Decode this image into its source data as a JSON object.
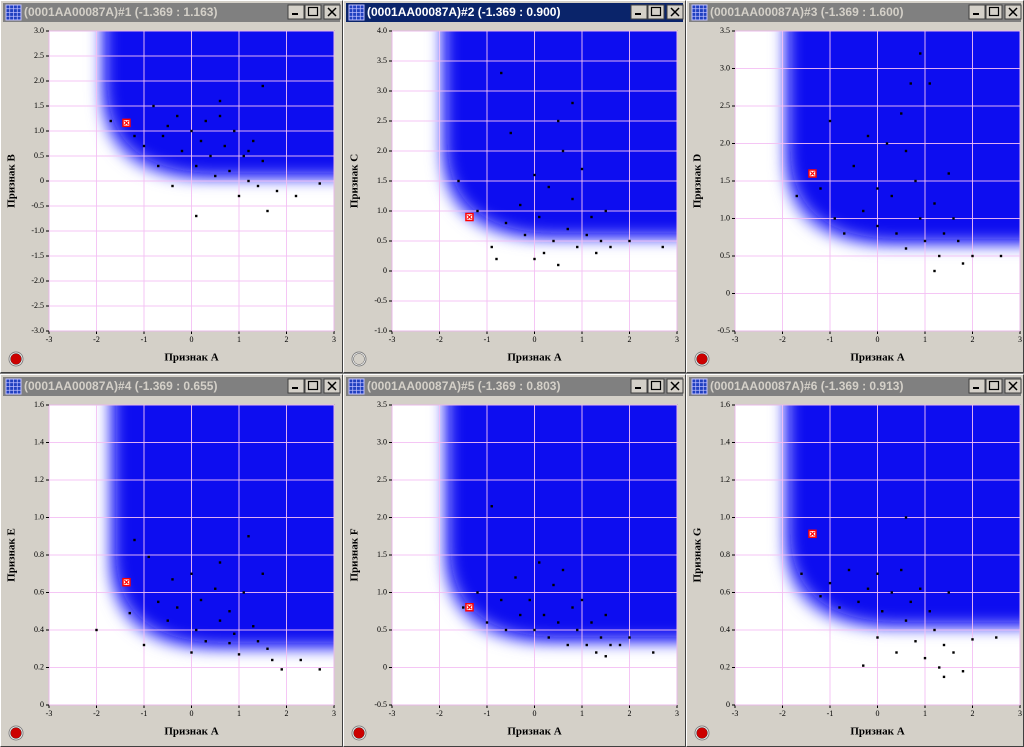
{
  "chart_data": [
    {
      "type": "scatter",
      "title": "(0001AA00087A)#1 (-1.369 : 1.163)",
      "active": false,
      "button_color": "#cc0000",
      "x_label": "Признак A",
      "y_label": "Признак B",
      "color": "#000000",
      "highlight_color": "#ff0000",
      "xlim": [
        -3,
        3
      ],
      "ylim": [
        -3,
        3
      ],
      "xticks": [
        -3,
        -2,
        -1,
        0,
        1,
        2,
        3
      ],
      "yticks": [
        {
          "value": -3,
          "label": "-3.0"
        },
        {
          "value": -2.5,
          "label": "-2.5"
        },
        {
          "value": -2,
          "label": "-2.0"
        },
        {
          "value": -1.5,
          "label": "-1.5"
        },
        {
          "value": -1,
          "label": "-1.0"
        },
        {
          "value": -0.5,
          "label": "-0.5"
        },
        0,
        {
          "value": 0.5,
          "label": "0.5"
        },
        {
          "value": 1,
          "label": "1.0"
        },
        {
          "value": 1.5,
          "label": "1.5"
        },
        {
          "value": 2,
          "label": "2.0"
        },
        {
          "value": 2.5,
          "label": "2.5"
        },
        {
          "value": 3,
          "label": "3.0"
        }
      ],
      "x": [
        -1.7,
        -1.2,
        -1,
        -0.8,
        -0.7,
        -0.5,
        -0.4,
        -0.3,
        -0.2,
        0,
        0.1,
        0.1,
        0.2,
        0.3,
        0.4,
        0.5,
        0.6,
        0.7,
        0.8,
        0.9,
        1.0,
        1.1,
        1.2,
        1.3,
        1.4,
        1.5,
        1.5,
        1.6,
        1.8,
        2.2,
        2.7,
        0.6,
        -0.6,
        1.2
      ],
      "y": [
        1.2,
        0.9,
        0.7,
        1.5,
        0.3,
        1.1,
        -0.1,
        1.3,
        0.6,
        1.0,
        -0.7,
        0.3,
        0.8,
        1.2,
        0.5,
        0.1,
        1.6,
        0.7,
        0.2,
        1.0,
        -0.3,
        0.5,
        0.0,
        0.8,
        -0.1,
        0.4,
        1.9,
        -0.6,
        -0.2,
        -0.3,
        -0.05,
        1.3,
        0.9,
        0.6
      ],
      "highlight": {
        "x": -1.369,
        "y": 1.163
      }
    },
    {
      "type": "scatter",
      "title": "(0001AA00087A)#2 (-1.369 : 0.900)",
      "active": true,
      "button_color": "#d4d0c8",
      "x_label": "Признак A",
      "y_label": "Признак C",
      "color": "#000000",
      "highlight_color": "#ff0000",
      "xlim": [
        -3,
        3
      ],
      "ylim": [
        -1,
        4
      ],
      "xticks": [
        -3,
        -2,
        -1,
        0,
        1,
        2,
        3
      ],
      "yticks": [
        {
          "value": -1,
          "label": "-1.0"
        },
        {
          "value": -0.5,
          "label": "-0.5"
        },
        0,
        {
          "value": 0.5,
          "label": "0.5"
        },
        {
          "value": 1,
          "label": "1.0"
        },
        {
          "value": 1.5,
          "label": "1.5"
        },
        {
          "value": 2,
          "label": "2.0"
        },
        {
          "value": 2.5,
          "label": "2.5"
        },
        {
          "value": 3,
          "label": "3.0"
        },
        {
          "value": 3.5,
          "label": "3.5"
        },
        {
          "value": 4,
          "label": "4.0"
        }
      ],
      "x": [
        -1.6,
        -1.2,
        -0.9,
        -0.8,
        -0.7,
        -0.6,
        -0.5,
        -0.3,
        -0.2,
        0,
        0,
        0.1,
        0.2,
        0.3,
        0.4,
        0.5,
        0.5,
        0.6,
        0.7,
        0.8,
        0.8,
        0.9,
        1.0,
        1.1,
        1.2,
        1.3,
        1.4,
        1.5,
        1.6,
        2.0,
        2.7
      ],
      "y": [
        1.5,
        1.0,
        0.4,
        0.2,
        3.3,
        0.8,
        2.3,
        1.1,
        0.6,
        0.2,
        1.6,
        0.9,
        0.3,
        1.4,
        0.5,
        2.5,
        0.1,
        2.0,
        0.7,
        1.2,
        2.8,
        0.4,
        1.7,
        0.6,
        0.9,
        0.3,
        0.5,
        1.0,
        0.4,
        0.5,
        0.4
      ],
      "highlight": {
        "x": -1.369,
        "y": 0.9
      }
    },
    {
      "type": "scatter",
      "title": "(0001AA00087A)#3 (-1.369 : 1.600)",
      "active": false,
      "button_color": "#cc0000",
      "x_label": "Признак A",
      "y_label": "Признак D",
      "color": "#000000",
      "highlight_color": "#ff0000",
      "xlim": [
        -3,
        3
      ],
      "ylim": [
        -0.5,
        3.5
      ],
      "xticks": [
        -3,
        -2,
        -1,
        0,
        1,
        2,
        3
      ],
      "yticks": [
        {
          "value": -0.5,
          "label": "-0.5"
        },
        0,
        {
          "value": 0.5,
          "label": "0.5"
        },
        {
          "value": 1,
          "label": "1.0"
        },
        {
          "value": 1.5,
          "label": "1.5"
        },
        {
          "value": 2,
          "label": "2.0"
        },
        {
          "value": 2.5,
          "label": "2.5"
        },
        {
          "value": 3,
          "label": "3.0"
        },
        {
          "value": 3.5,
          "label": "3.5"
        }
      ],
      "x": [
        -1.7,
        -1.2,
        -1.0,
        -0.9,
        -0.7,
        -0.5,
        -0.3,
        -0.2,
        0,
        0,
        0.2,
        0.3,
        0.4,
        0.5,
        0.6,
        0.6,
        0.7,
        0.8,
        0.9,
        1.0,
        1.1,
        1.2,
        1.3,
        1.4,
        1.5,
        1.6,
        1.7,
        1.8,
        2.0,
        2.6,
        1.2,
        0.9
      ],
      "y": [
        1.3,
        1.4,
        2.3,
        1.0,
        0.8,
        1.7,
        1.1,
        2.1,
        1.4,
        0.9,
        2.0,
        1.3,
        0.8,
        2.4,
        1.9,
        0.6,
        2.8,
        1.5,
        1.0,
        0.7,
        2.8,
        1.2,
        0.5,
        0.8,
        1.6,
        1.0,
        0.7,
        0.4,
        0.5,
        0.5,
        0.3,
        3.2
      ],
      "highlight": {
        "x": -1.369,
        "y": 1.6
      }
    },
    {
      "type": "scatter",
      "title": "(0001AA00087A)#4 (-1.369 : 0.655)",
      "active": false,
      "button_color": "#cc0000",
      "x_label": "Признак A",
      "y_label": "Признак E",
      "color": "#000000",
      "highlight_color": "#ff0000",
      "xlim": [
        -3,
        3
      ],
      "ylim": [
        0,
        1.6
      ],
      "xticks": [
        -3,
        -2,
        -1,
        0,
        1,
        2,
        3
      ],
      "yticks": [
        0,
        {
          "value": 0.2,
          "label": "0.2"
        },
        {
          "value": 0.4,
          "label": "0.4"
        },
        {
          "value": 0.6,
          "label": "0.6"
        },
        {
          "value": 0.8,
          "label": "0.8"
        },
        {
          "value": 1,
          "label": "1.0"
        },
        {
          "value": 1.2,
          "label": "1.2"
        },
        {
          "value": 1.4,
          "label": "1.4"
        },
        {
          "value": 1.6,
          "label": "1.6"
        }
      ],
      "x": [
        -2,
        -1.3,
        -1.2,
        -1,
        -0.9,
        -0.7,
        -0.5,
        -0.4,
        -0.3,
        0,
        0,
        0.1,
        0.2,
        0.3,
        0.5,
        0.6,
        0.6,
        0.8,
        0.9,
        1.0,
        1.1,
        1.2,
        1.3,
        1.4,
        1.5,
        1.6,
        1.7,
        1.9,
        2.3,
        2.7,
        0.8
      ],
      "y": [
        0.4,
        0.49,
        0.88,
        0.32,
        0.79,
        0.55,
        0.45,
        0.67,
        0.52,
        0.28,
        0.7,
        0.4,
        0.56,
        0.34,
        0.62,
        0.76,
        0.45,
        0.5,
        0.38,
        0.27,
        0.6,
        0.9,
        0.42,
        0.34,
        0.7,
        0.3,
        0.24,
        0.19,
        0.24,
        0.19,
        0.33
      ],
      "highlight": {
        "x": -1.369,
        "y": 0.655
      }
    },
    {
      "type": "scatter",
      "title": "(0001AA00087A)#5 (-1.369 : 0.803)",
      "active": false,
      "button_color": "#cc0000",
      "x_label": "Признак A",
      "y_label": "Признак F",
      "color": "#000000",
      "highlight_color": "#ff0000",
      "xlim": [
        -3,
        3
      ],
      "ylim": [
        -0.5,
        3.5
      ],
      "xticks": [
        -3,
        -2,
        -1,
        0,
        1,
        2,
        3
      ],
      "yticks": [
        {
          "value": -0.5,
          "label": "-0.5"
        },
        0,
        {
          "value": 0.5,
          "label": "0.5"
        },
        {
          "value": 1,
          "label": "1.0"
        },
        {
          "value": 1.5,
          "label": "1.5"
        },
        {
          "value": 2,
          "label": "2.0"
        },
        {
          "value": 2.5,
          "label": "2.5"
        },
        {
          "value": 3,
          "label": "3.0"
        },
        {
          "value": 3.5,
          "label": "3.5"
        }
      ],
      "x": [
        -1.5,
        -1.2,
        -1,
        -0.9,
        -0.7,
        -0.6,
        -0.4,
        -0.3,
        -0.1,
        0,
        0.1,
        0.2,
        0.3,
        0.4,
        0.5,
        0.6,
        0.7,
        0.8,
        0.9,
        1.0,
        1.1,
        1.2,
        1.3,
        1.4,
        1.5,
        1.6,
        1.8,
        2.0,
        2.5,
        1.5
      ],
      "y": [
        0.8,
        1.0,
        0.6,
        2.15,
        0.9,
        0.5,
        1.2,
        0.7,
        0.9,
        0.5,
        1.4,
        0.7,
        0.4,
        1.1,
        0.6,
        1.3,
        0.3,
        0.8,
        0.5,
        0.9,
        0.3,
        0.6,
        0.2,
        0.4,
        0.7,
        0.3,
        0.3,
        0.4,
        0.2,
        0.15
      ],
      "highlight": {
        "x": -1.369,
        "y": 0.803
      }
    },
    {
      "type": "scatter",
      "title": "(0001AA00087A)#6 (-1.369 : 0.913)",
      "active": false,
      "button_color": "#cc0000",
      "x_label": "Признак A",
      "y_label": "Признак G",
      "color": "#000000",
      "highlight_color": "#ff0000",
      "xlim": [
        -3,
        3
      ],
      "ylim": [
        0,
        1.6
      ],
      "xticks": [
        -3,
        -2,
        -1,
        0,
        1,
        2,
        3
      ],
      "yticks": [
        0,
        {
          "value": 0.2,
          "label": "0.2"
        },
        {
          "value": 0.4,
          "label": "0.4"
        },
        {
          "value": 0.6,
          "label": "0.6"
        },
        {
          "value": 0.8,
          "label": "0.8"
        },
        {
          "value": 1,
          "label": "1.0"
        },
        {
          "value": 1.2,
          "label": "1.2"
        },
        {
          "value": 1.4,
          "label": "1.4"
        },
        {
          "value": 1.6,
          "label": "1.6"
        }
      ],
      "x": [
        -1.6,
        -1.2,
        -1,
        -0.8,
        -0.6,
        -0.4,
        -0.3,
        -0.2,
        0,
        0,
        0.1,
        0.3,
        0.4,
        0.5,
        0.6,
        0.6,
        0.7,
        0.8,
        0.9,
        1.0,
        1.1,
        1.2,
        1.3,
        1.4,
        1.5,
        1.6,
        1.8,
        2.0,
        2.5,
        1.4
      ],
      "y": [
        0.7,
        0.58,
        0.65,
        0.52,
        0.72,
        0.55,
        0.21,
        0.62,
        0.36,
        0.7,
        0.5,
        0.6,
        0.28,
        0.72,
        1.0,
        0.45,
        0.55,
        0.34,
        0.62,
        0.25,
        0.5,
        0.4,
        0.2,
        0.32,
        0.6,
        0.28,
        0.18,
        0.35,
        0.36,
        0.15
      ],
      "highlight": {
        "x": -1.369,
        "y": 0.913
      }
    }
  ]
}
